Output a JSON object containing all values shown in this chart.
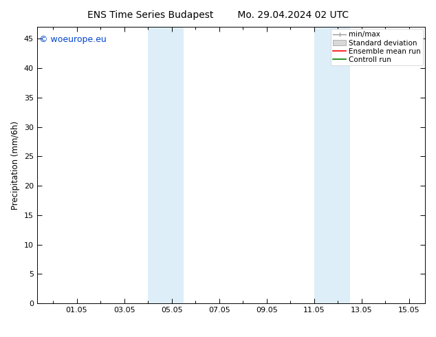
{
  "title_left": "ENS Time Series Budapest",
  "title_right": "Mo. 29.04.2024 02 UTC",
  "ylabel": "Precipitation (mm/6h)",
  "xlim_left": -0.67,
  "xlim_right": 15.67,
  "ylim": [
    0,
    47
  ],
  "yticks": [
    0,
    5,
    10,
    15,
    20,
    25,
    30,
    35,
    40,
    45
  ],
  "xtick_labels": [
    "01.05",
    "03.05",
    "05.05",
    "07.05",
    "09.05",
    "11.05",
    "13.05",
    "15.05"
  ],
  "xtick_positions": [
    1.0,
    3.0,
    5.0,
    7.0,
    9.0,
    11.0,
    13.0,
    15.0
  ],
  "shaded_regions": [
    {
      "xmin": 4.0,
      "xmax": 5.5,
      "color": "#ddeef8"
    },
    {
      "xmin": 11.0,
      "xmax": 12.5,
      "color": "#ddeef8"
    }
  ],
  "watermark_text": "© woeurope.eu",
  "watermark_color": "#0044cc",
  "watermark_fontsize": 9,
  "background_color": "#ffffff",
  "title_fontsize": 10,
  "tick_fontsize": 8,
  "ylabel_fontsize": 8.5,
  "legend_fontsize": 7.5
}
